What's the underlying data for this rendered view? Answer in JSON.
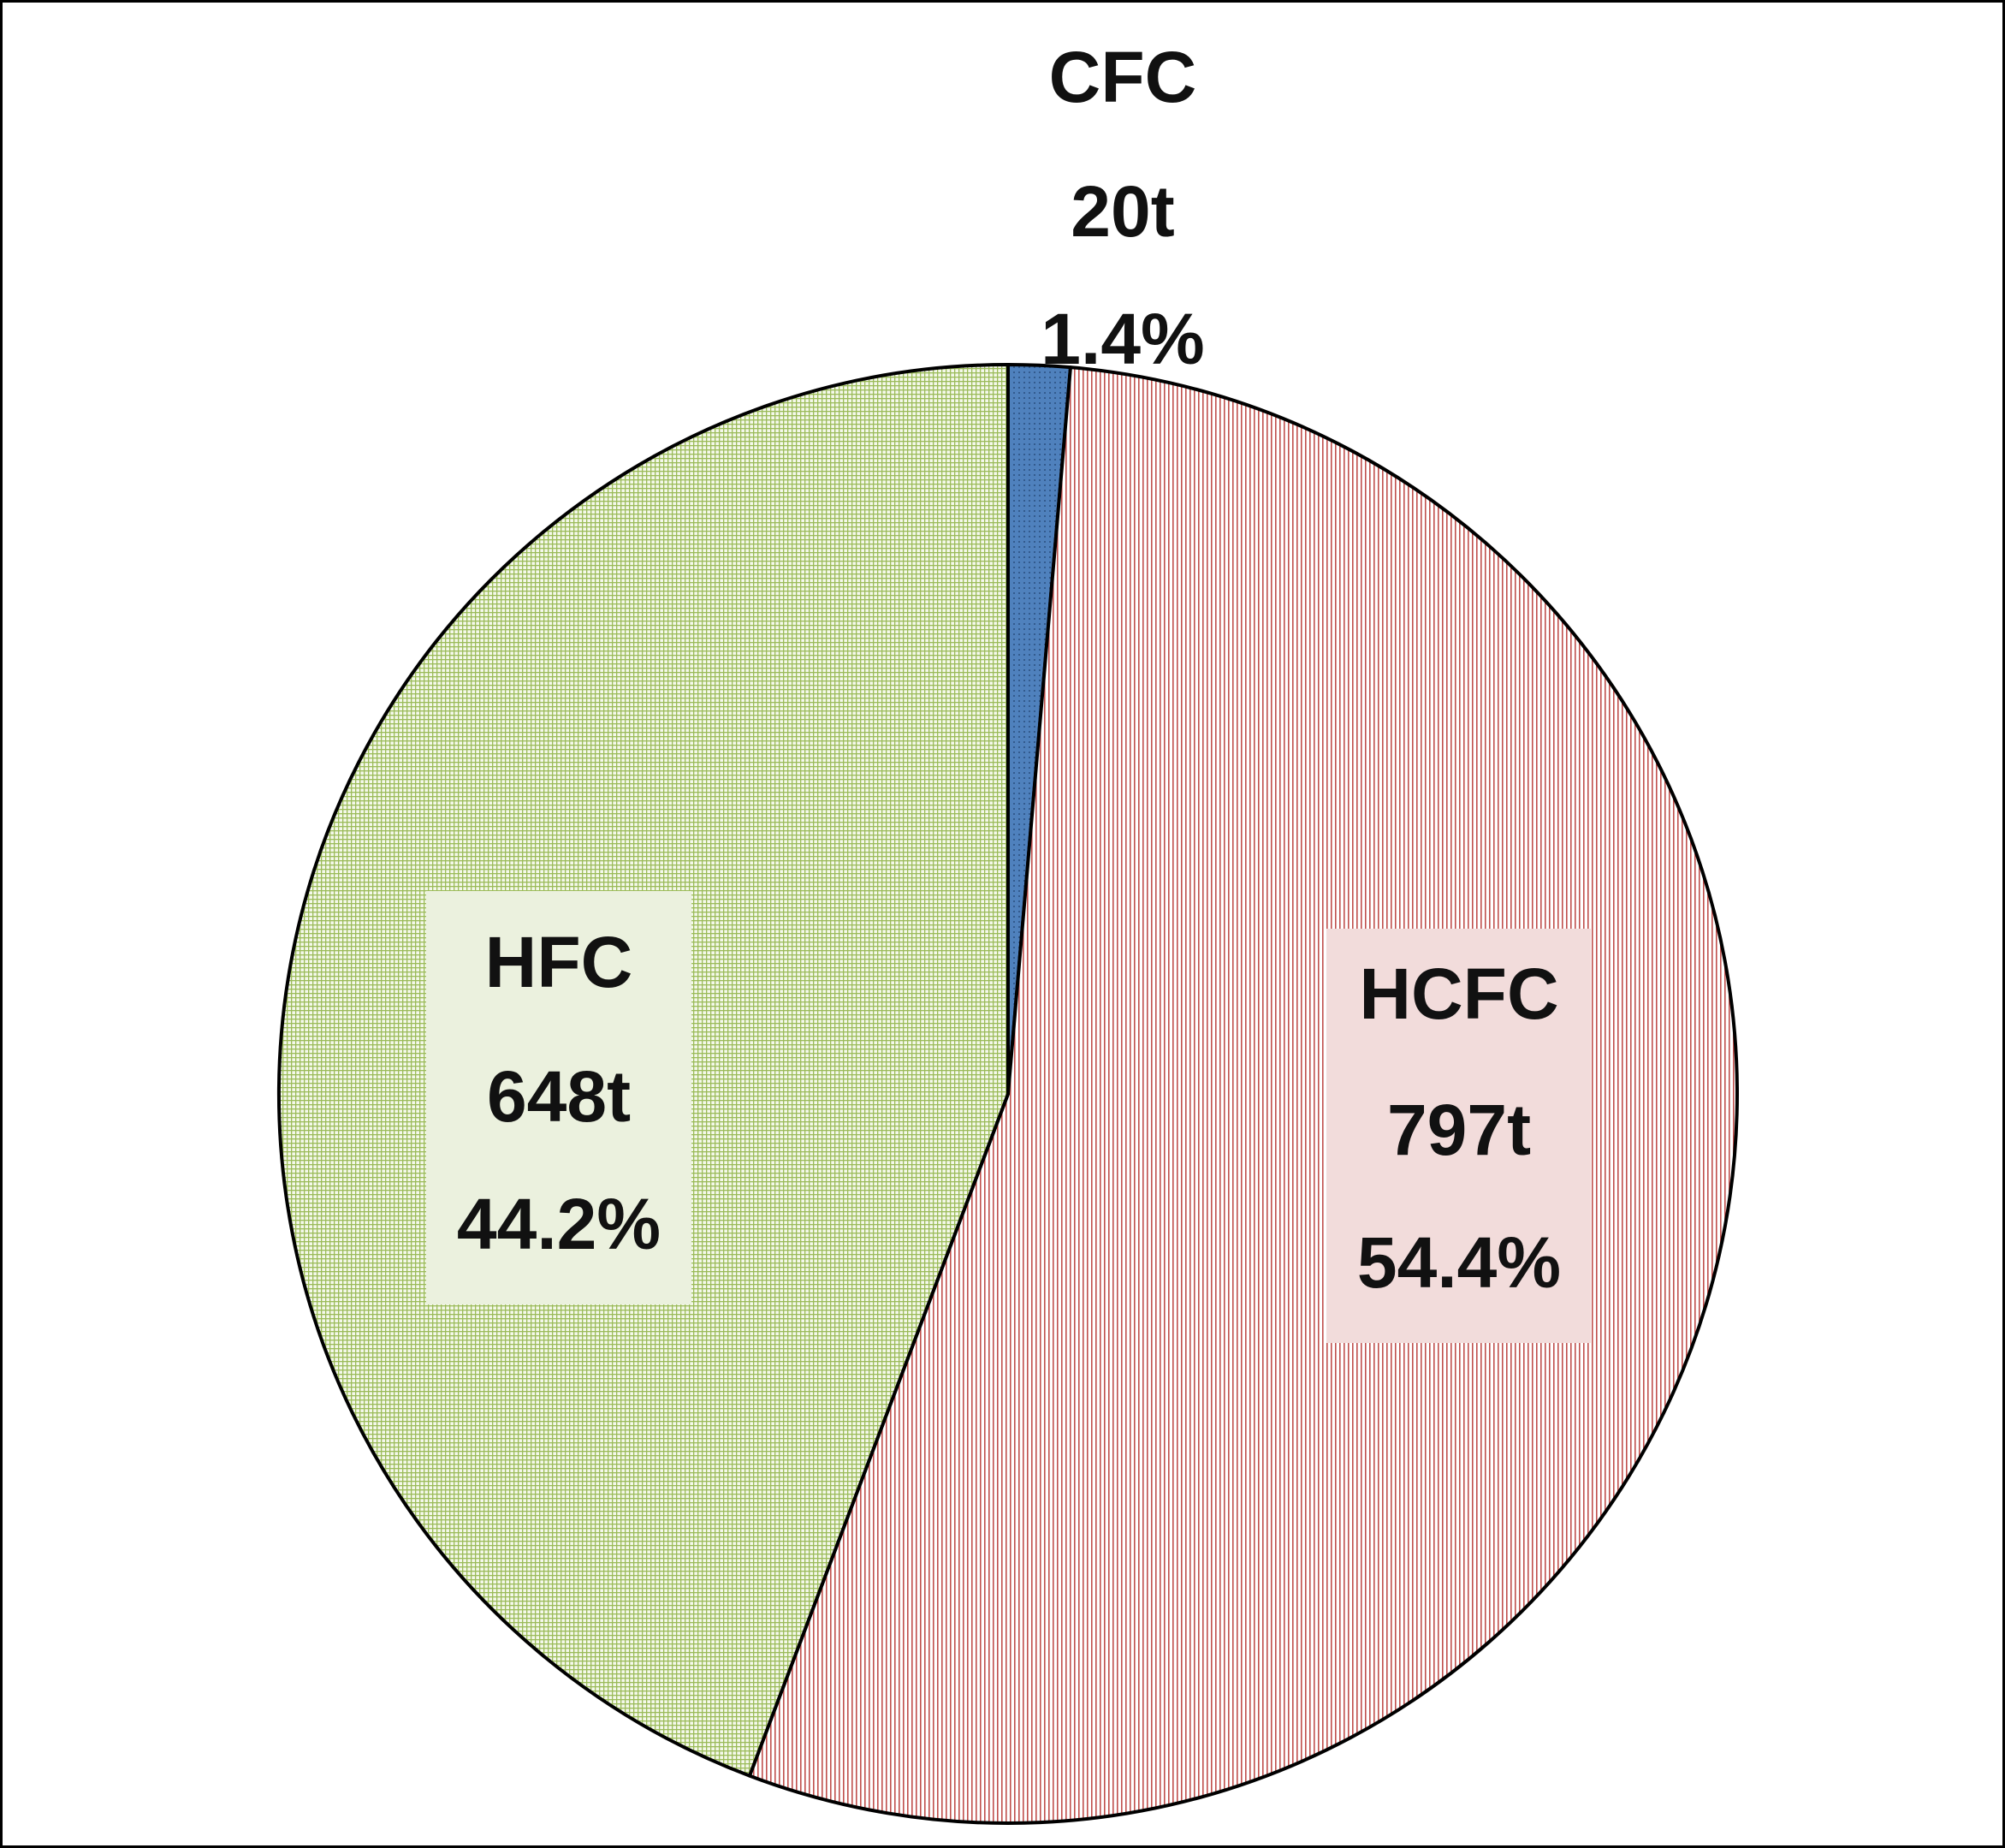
{
  "chart_data": {
    "type": "pie",
    "categories": [
      "CFC",
      "HCFC",
      "HFC"
    ],
    "values": [
      20,
      797,
      648
    ],
    "value_labels": [
      "20t",
      "797t",
      "648t"
    ],
    "shares": [
      1.4,
      54.4,
      44.2
    ],
    "share_labels": [
      "1.4%",
      "54.4%",
      "44.2%"
    ],
    "colors": [
      "#4f81bd",
      "#c0504d",
      "#9bbb59"
    ]
  }
}
